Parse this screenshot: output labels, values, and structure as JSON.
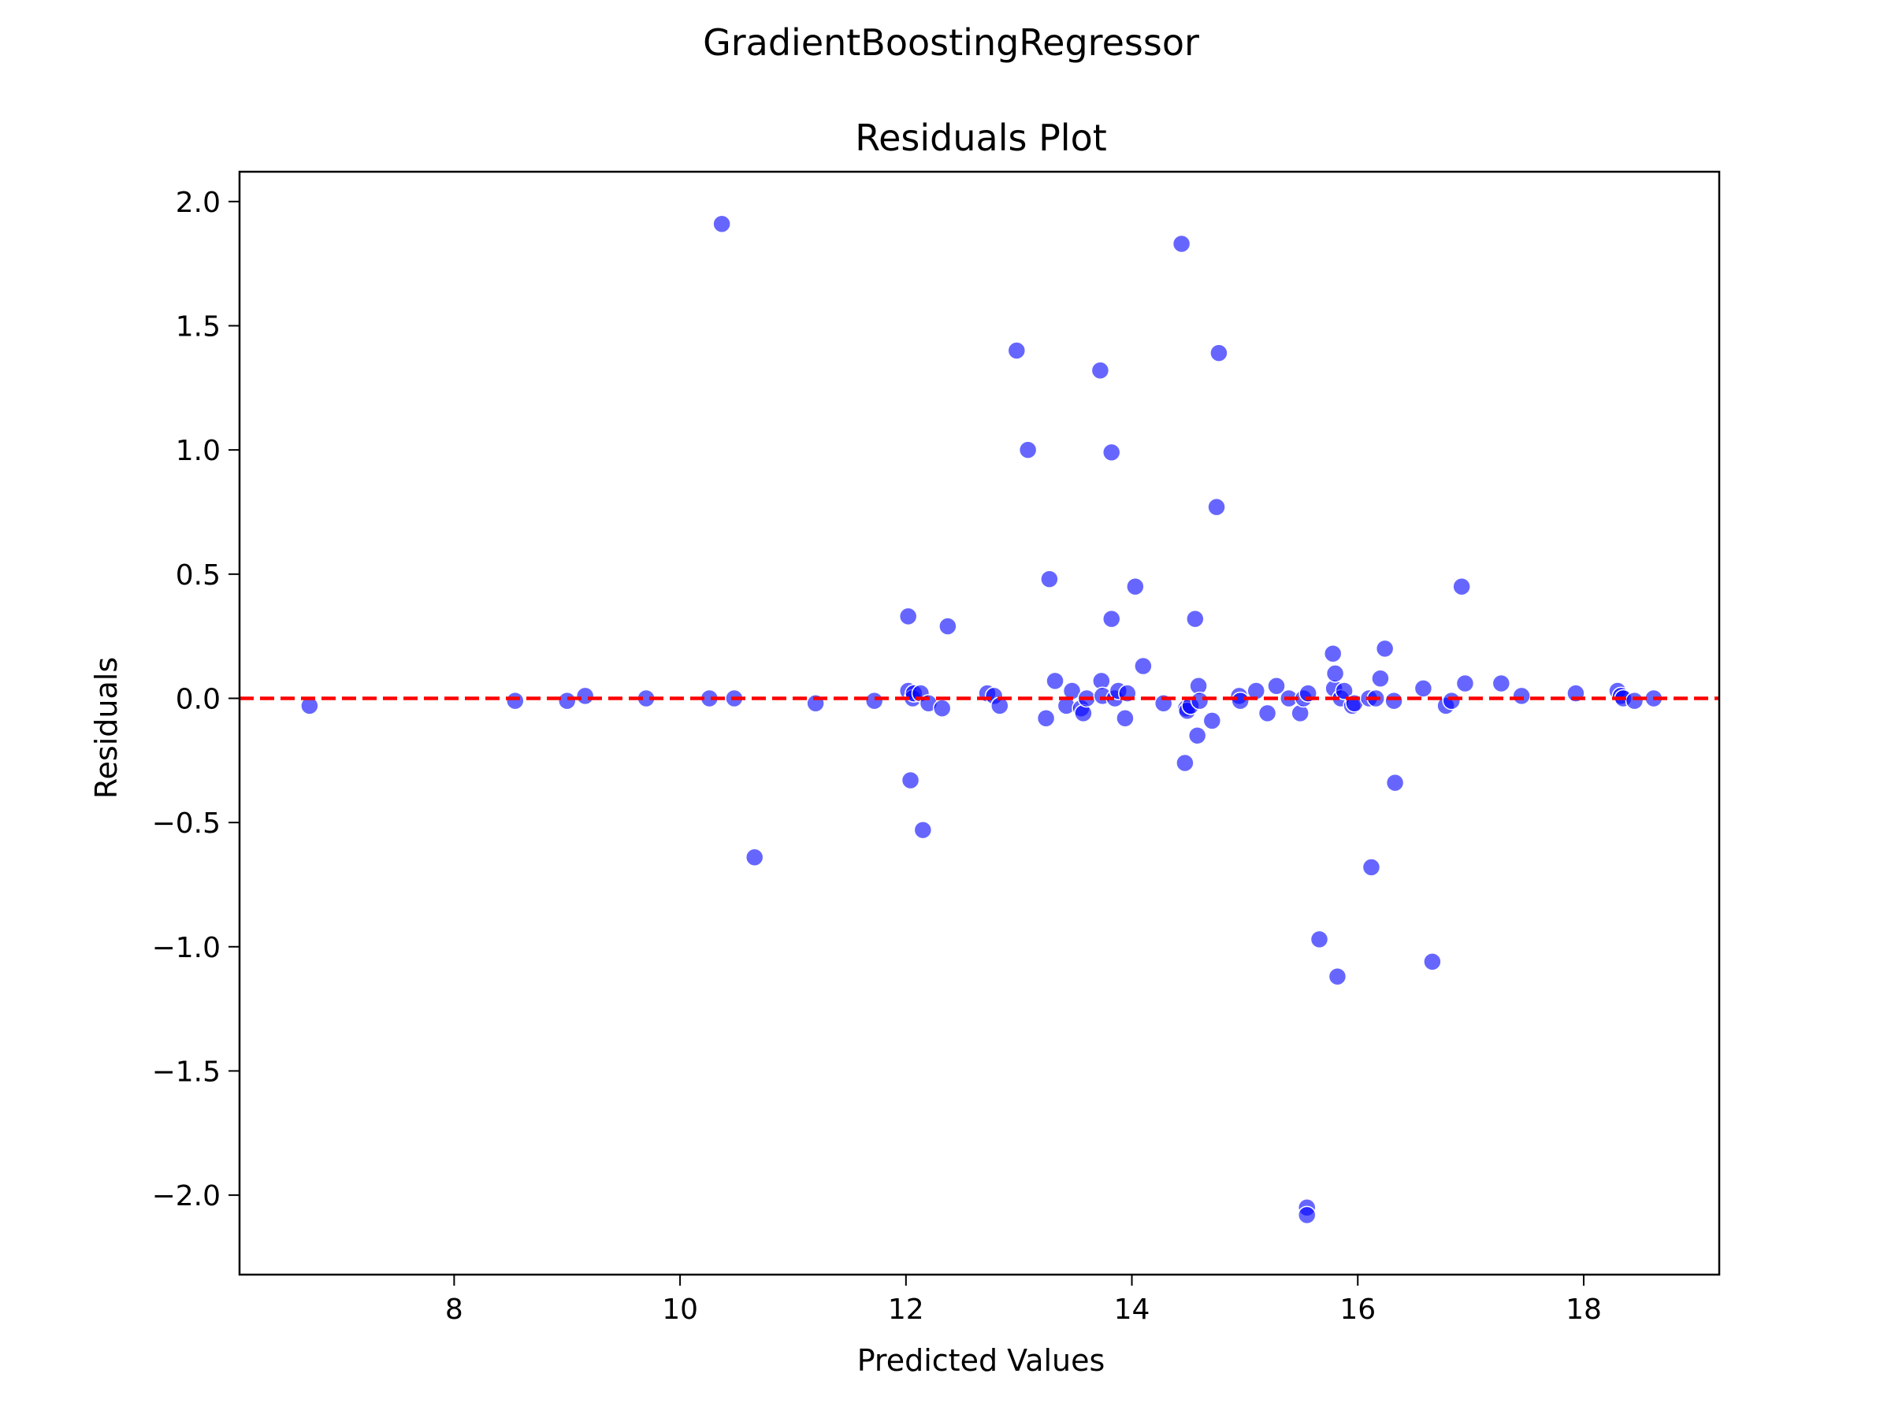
{
  "figure": {
    "suptitle": "GradientBoostingRegressor"
  },
  "chart_data": {
    "type": "scatter",
    "title": "Residuals Plot",
    "xlabel": "Predicted Values",
    "ylabel": "Residuals",
    "xlim": [
      6.1,
      19.2
    ],
    "ylim": [
      -2.32,
      2.12
    ],
    "xticks": [
      8,
      10,
      12,
      14,
      16,
      18
    ],
    "xtick_labels": [
      "8",
      "10",
      "12",
      "14",
      "16",
      "18"
    ],
    "yticks": [
      2.0,
      1.5,
      1.0,
      0.5,
      0.0,
      -0.5,
      -1.0,
      -1.5,
      -2.0
    ],
    "ytick_labels": [
      "2.0",
      "1.5",
      "1.0",
      "0.5",
      "0.0",
      "−0.5",
      "−1.0",
      "−1.5",
      "−2.0"
    ],
    "grid": false,
    "reference_line": {
      "y": 0.0,
      "style": "dashed",
      "color": "#ff0000"
    },
    "marker_color": "#0000ff",
    "marker_alpha": 0.6,
    "x": [
      6.72,
      8.54,
      9.0,
      9.16,
      9.7,
      10.26,
      10.37,
      10.48,
      10.66,
      11.2,
      11.72,
      12.02,
      12.02,
      12.04,
      12.06,
      12.07,
      12.13,
      12.15,
      12.2,
      12.32,
      12.37,
      12.72,
      12.78,
      12.83,
      12.98,
      13.08,
      13.24,
      13.27,
      13.32,
      13.42,
      13.47,
      13.55,
      13.57,
      13.6,
      13.72,
      13.73,
      13.74,
      13.82,
      13.82,
      13.85,
      13.88,
      13.94,
      13.96,
      14.03,
      14.1,
      14.28,
      14.44,
      14.47,
      14.48,
      14.49,
      14.52,
      14.56,
      14.58,
      14.59,
      14.6,
      14.71,
      14.75,
      14.77,
      14.95,
      14.96,
      15.1,
      15.2,
      15.28,
      15.39,
      15.49,
      15.52,
      15.55,
      15.55,
      15.56,
      15.66,
      15.78,
      15.79,
      15.8,
      15.82,
      15.85,
      15.88,
      15.95,
      15.97,
      16.1,
      16.12,
      16.16,
      16.2,
      16.24,
      16.32,
      16.33,
      16.58,
      16.66,
      16.78,
      16.83,
      16.92,
      16.95,
      17.27,
      17.45,
      17.93,
      18.3,
      18.33,
      18.35,
      18.45,
      18.62
    ],
    "y": [
      -0.03,
      -0.01,
      -0.01,
      0.01,
      0.0,
      0.0,
      1.91,
      0.0,
      -0.64,
      -0.02,
      -0.01,
      0.03,
      0.33,
      -0.33,
      0.0,
      0.02,
      0.02,
      -0.53,
      -0.02,
      -0.04,
      0.29,
      0.02,
      0.01,
      -0.03,
      1.4,
      1.0,
      -0.08,
      0.48,
      0.07,
      -0.03,
      0.03,
      -0.04,
      -0.06,
      0.0,
      1.32,
      0.07,
      0.01,
      0.99,
      0.32,
      0.0,
      0.03,
      -0.08,
      0.02,
      0.45,
      0.13,
      -0.02,
      1.83,
      -0.26,
      -0.04,
      -0.05,
      -0.03,
      0.32,
      -0.15,
      0.05,
      -0.01,
      -0.09,
      0.77,
      1.39,
      0.01,
      -0.01,
      0.03,
      -0.06,
      0.05,
      0.0,
      -0.06,
      0.0,
      -2.05,
      -2.08,
      0.02,
      -0.97,
      0.18,
      0.04,
      0.1,
      -1.12,
      0.0,
      0.03,
      -0.03,
      -0.02,
      0.0,
      -0.68,
      0.0,
      0.08,
      0.2,
      -0.01,
      -0.34,
      0.04,
      -1.06,
      -0.03,
      -0.01,
      0.45,
      0.06,
      0.06,
      0.01,
      0.02,
      0.03,
      0.01,
      0.0,
      -0.01,
      0.0
    ]
  }
}
